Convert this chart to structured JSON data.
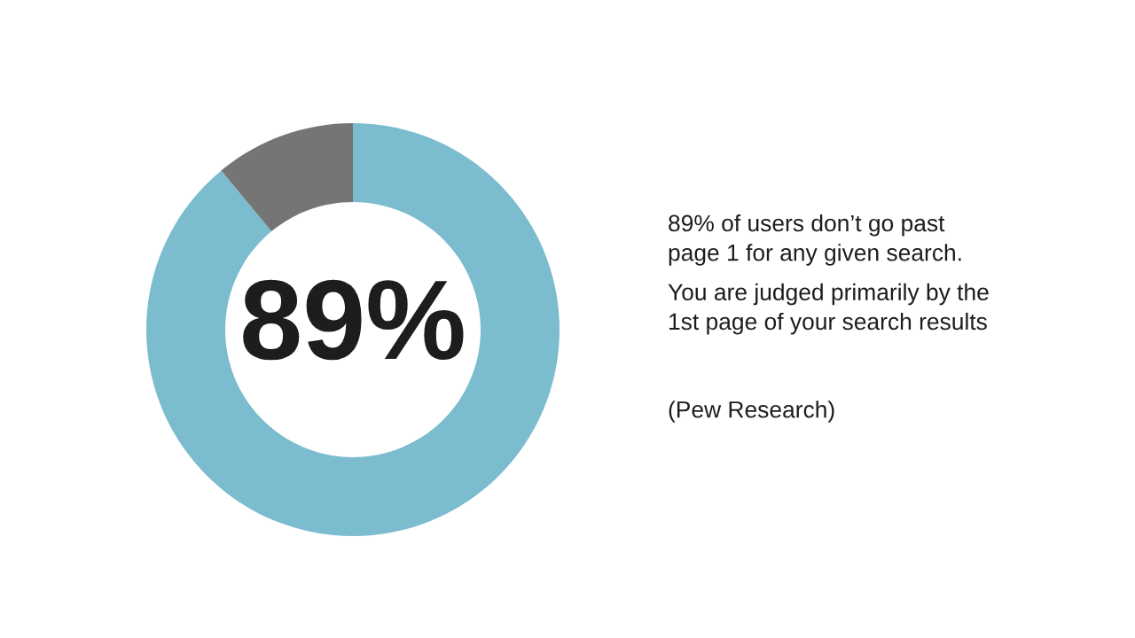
{
  "chart_data": {
    "type": "donut",
    "categories": [
      null,
      null
    ],
    "values": [
      89,
      11
    ],
    "colors": [
      "#7bbccf",
      "#757575"
    ],
    "annotations": [
      "89%",
      "89% of users don’t go past\npage 1 for any given search.",
      "You are judged primarily by the\n1st page of your search results",
      "(Pew Research)"
    ]
  }
}
